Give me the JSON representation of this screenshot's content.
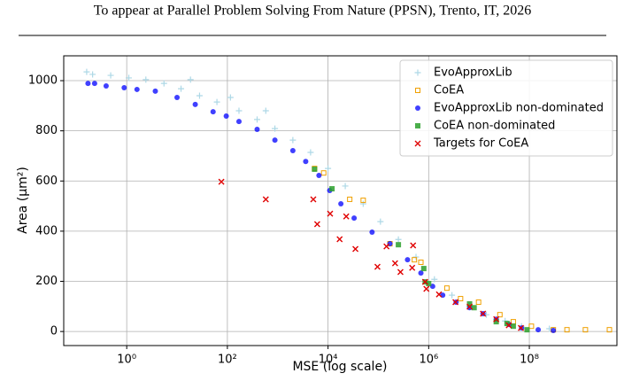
{
  "header": "To appear at Parallel Problem Solving From Nature (PPSN), Trento, IT, 2026",
  "chart_data": {
    "type": "scatter",
    "xlabel": "MSE (log scale)",
    "ylabel": "Area (μm²)",
    "xscale": "log",
    "grid": true,
    "legend": "upper right",
    "xlim": [
      0.056,
      5500000000
    ],
    "ylim": [
      -56,
      1099
    ],
    "xticks": [
      {
        "value": 1,
        "label": "10⁰"
      },
      {
        "value": 100,
        "label": "10²"
      },
      {
        "value": 10000,
        "label": "10⁴"
      },
      {
        "value": 1000000,
        "label": "10⁶"
      },
      {
        "value": 100000000,
        "label": "10⁸"
      }
    ],
    "yticks": [
      0,
      200,
      400,
      600,
      800,
      1000
    ],
    "series": [
      {
        "name": "EvoApproxLib",
        "color": "#add8e6",
        "marker": "plus",
        "x": [
          0.16,
          0.21,
          0.48,
          1.1,
          2.4,
          5.5,
          12,
          18.5,
          28,
          62,
          115,
          170,
          390,
          580,
          880,
          2000,
          4500,
          10000,
          22000,
          50000,
          110000,
          250000,
          560000,
          1300000,
          2900000,
          6500000,
          14000000,
          33000000,
          70000000,
          250000000
        ],
        "values": [
          1035,
          1025,
          1021,
          1011,
          1004,
          989,
          968,
          1004,
          940,
          915,
          933,
          880,
          845,
          880,
          809,
          763,
          714,
          650,
          580,
          509,
          438,
          367,
          297,
          208,
          145,
          102,
          67,
          42,
          21,
          11
        ]
      },
      {
        "name": "CoEA",
        "color": "#f0a000",
        "marker": "square-open",
        "x": [
          5400,
          8200,
          27000,
          50000,
          170000,
          520000,
          700000,
          2300000,
          4300000,
          9800000,
          26000000,
          48000000,
          110000000,
          300000000,
          560000000,
          1300000000,
          3900000000
        ],
        "values": [
          650,
          632,
          527,
          523,
          350,
          286,
          276,
          173,
          131,
          117,
          67,
          39,
          21,
          7,
          7,
          7,
          7
        ]
      },
      {
        "name": "EvoApproxLib non-dominated",
        "color": "#0000ff",
        "marker": "circle",
        "x": [
          0.17,
          0.23,
          0.39,
          0.89,
          1.6,
          3.7,
          10,
          23,
          52,
          95,
          170,
          390,
          880,
          2000,
          3600,
          6600,
          10800,
          18000,
          33000,
          75000,
          170000,
          380000,
          700000,
          1200000,
          1900000,
          3500000,
          6500000,
          12000000,
          22000000,
          40000000,
          70000000,
          150000000,
          300000000
        ],
        "values": [
          989,
          989,
          979,
          972,
          965,
          958,
          933,
          905,
          876,
          859,
          837,
          806,
          763,
          721,
          678,
          622,
          562,
          509,
          452,
          396,
          350,
          286,
          233,
          180,
          145,
          117,
          95,
          71,
          49,
          28,
          14,
          7,
          4
        ]
      },
      {
        "name": "CoEA non-dominated",
        "color": "#2ca02c",
        "marker": "square",
        "x": [
          5400,
          12000,
          250000,
          800000,
          850000,
          1000000,
          6500000,
          8000000,
          22000000,
          36000000,
          48000000,
          90000000
        ],
        "values": [
          647,
          569,
          346,
          251,
          198,
          191,
          110,
          95,
          39,
          32,
          21,
          7
        ]
      },
      {
        "name": "Targets for CoEA",
        "color": "#e00000",
        "marker": "x",
        "x": [
          76,
          580,
          5100,
          6100,
          11000,
          17000,
          23000,
          35000,
          96000,
          145000,
          215000,
          275000,
          490000,
          470000,
          900000,
          850000,
          1600000,
          3400000,
          6500000,
          12000000,
          22000000,
          39000000,
          68000000
        ],
        "values": [
          597,
          527,
          527,
          428,
          470,
          368,
          459,
          329,
          258,
          339,
          272,
          237,
          343,
          254,
          170,
          198,
          148,
          117,
          99,
          71,
          49,
          25,
          14
        ]
      }
    ]
  }
}
